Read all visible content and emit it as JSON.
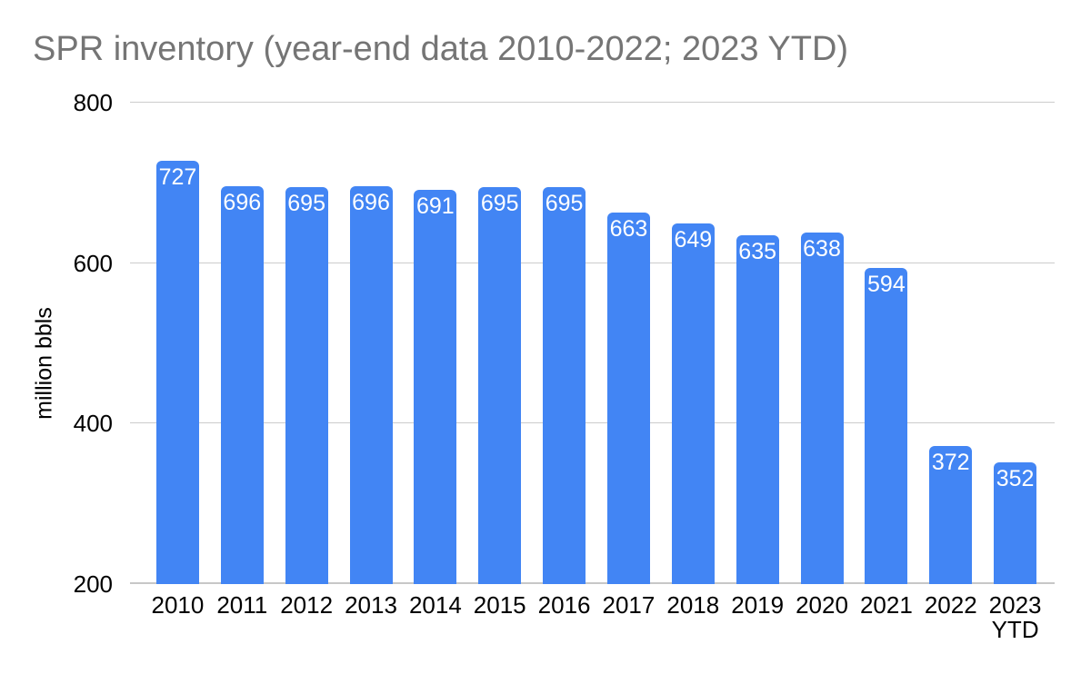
{
  "colors": {
    "background": "#ffffff",
    "bar": "#4285f4",
    "bar_label": "#ffffff",
    "title": "#757575",
    "axis_text": "#000000",
    "gridline": "#cccccc",
    "baseline": "#c7c7c7"
  },
  "chart_data": {
    "type": "bar",
    "title": "SPR inventory (year-end data 2010-2022; 2023 YTD)",
    "xlabel": "",
    "ylabel": "million bbls",
    "categories": [
      "2010",
      "2011",
      "2012",
      "2013",
      "2014",
      "2015",
      "2016",
      "2017",
      "2018",
      "2019",
      "2020",
      "2021",
      "2022",
      "2023\nYTD"
    ],
    "values": [
      727,
      696,
      695,
      696,
      691,
      695,
      695,
      663,
      649,
      635,
      638,
      594,
      372,
      352
    ],
    "ylim": [
      200,
      800
    ],
    "yticks": [
      200,
      400,
      600,
      800
    ],
    "grid": true,
    "legend_position": "none",
    "bar_labels_visible": true
  }
}
